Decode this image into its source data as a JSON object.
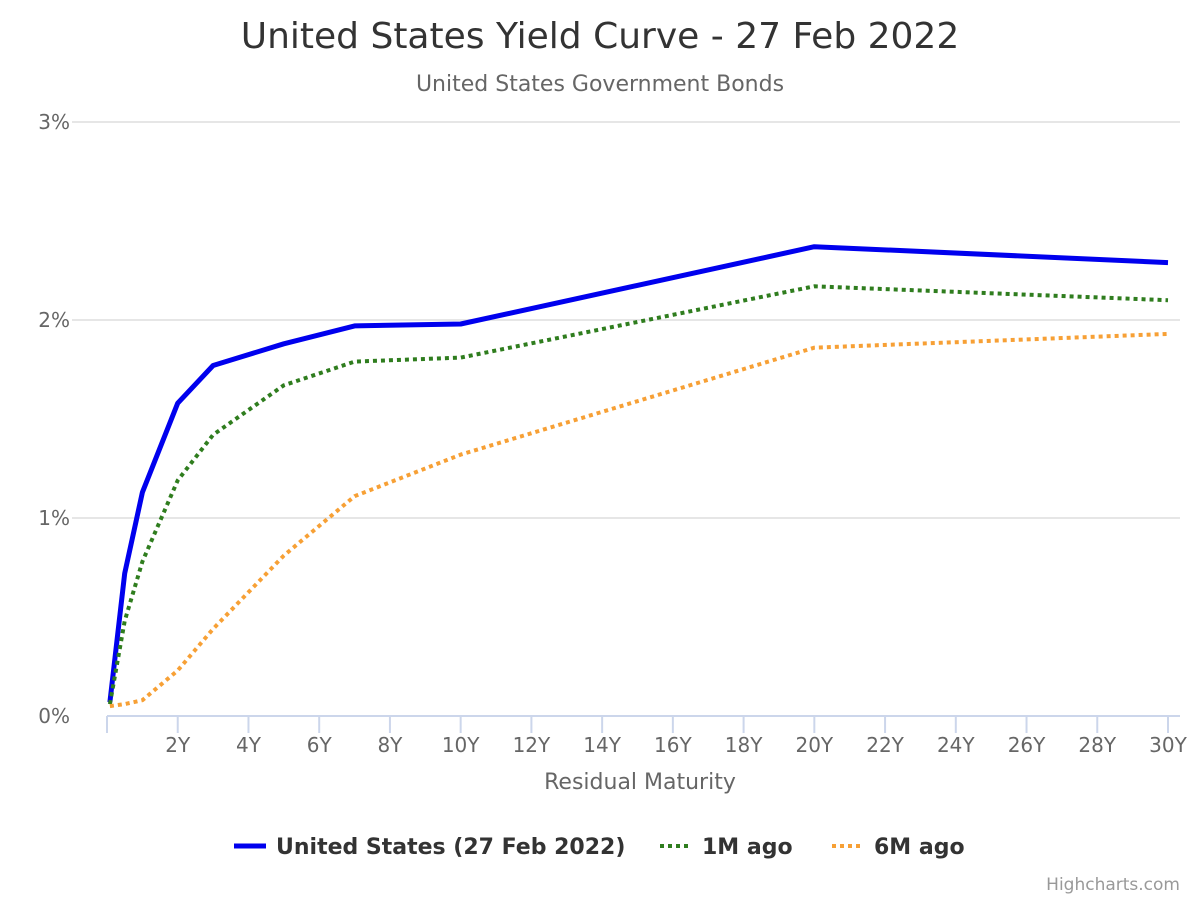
{
  "chart_data": {
    "type": "line",
    "title": "United States Yield Curve - 27 Feb 2022",
    "subtitle": "United States Government Bonds",
    "xlabel": "Residual Maturity",
    "ylabel": "",
    "x_unit": "years",
    "xlim": [
      0,
      30
    ],
    "ylim": [
      0,
      3
    ],
    "y_ticks": [
      "0%",
      "1%",
      "2%",
      "3%"
    ],
    "x_ticks": [
      "2Y",
      "4Y",
      "6Y",
      "8Y",
      "10Y",
      "12Y",
      "14Y",
      "16Y",
      "18Y",
      "20Y",
      "22Y",
      "24Y",
      "26Y",
      "28Y",
      "30Y"
    ],
    "grid": true,
    "legend_position": "bottom-center",
    "series": [
      {
        "name": "United States (27 Feb 2022)",
        "color": "#0000ee",
        "style": "solid",
        "points": [
          [
            0.083,
            0.07
          ],
          [
            0.5,
            0.72
          ],
          [
            1,
            1.13
          ],
          [
            2,
            1.58
          ],
          [
            3,
            1.77
          ],
          [
            5,
            1.88
          ],
          [
            7,
            1.97
          ],
          [
            10,
            1.98
          ],
          [
            20,
            2.37
          ],
          [
            30,
            2.29
          ]
        ]
      },
      {
        "name": "1M ago",
        "color": "#2f7d1e",
        "style": "dotted",
        "points": [
          [
            0.083,
            0.06
          ],
          [
            0.5,
            0.48
          ],
          [
            1,
            0.78
          ],
          [
            2,
            1.19
          ],
          [
            3,
            1.42
          ],
          [
            5,
            1.67
          ],
          [
            7,
            1.79
          ],
          [
            10,
            1.81
          ],
          [
            20,
            2.17
          ],
          [
            30,
            2.1
          ]
        ]
      },
      {
        "name": "6M ago",
        "color": "#f7a035",
        "style": "dotted",
        "points": [
          [
            0.083,
            0.05
          ],
          [
            0.5,
            0.06
          ],
          [
            1,
            0.08
          ],
          [
            2,
            0.23
          ],
          [
            3,
            0.44
          ],
          [
            5,
            0.81
          ],
          [
            7,
            1.11
          ],
          [
            10,
            1.32
          ],
          [
            20,
            1.86
          ],
          [
            30,
            1.93
          ]
        ]
      }
    ]
  },
  "credits": "Highcharts.com"
}
